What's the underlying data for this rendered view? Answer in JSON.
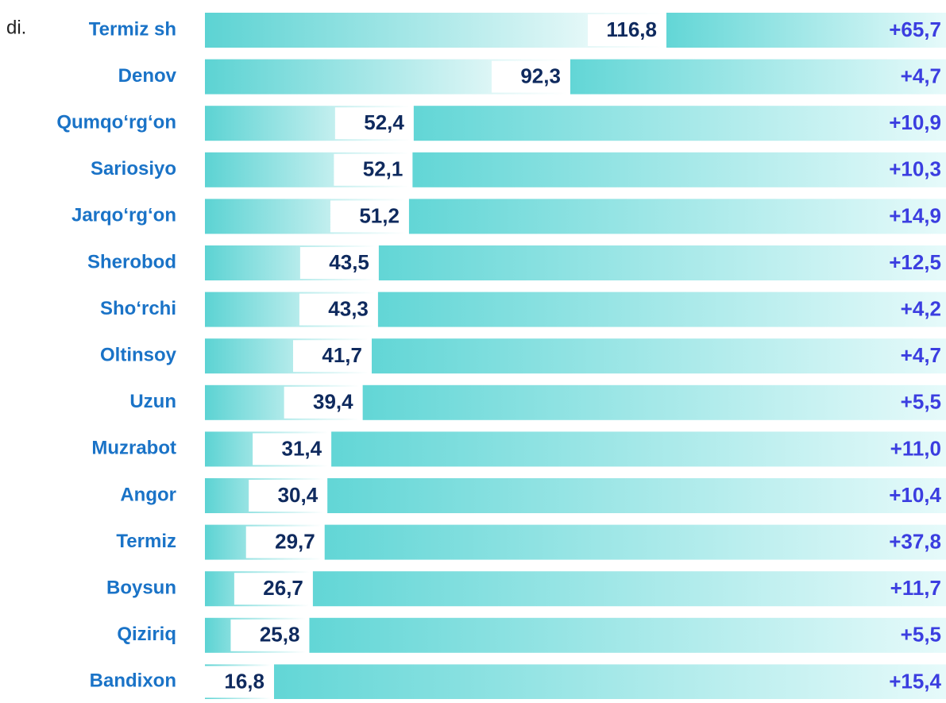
{
  "chart_data": {
    "type": "bar",
    "note": "di.",
    "categories": [
      "Termiz sh",
      "Denov",
      "Qumqo‘rg‘on",
      "Sariosiyo",
      "Jarqo‘rg‘on",
      "Sherobod",
      "Sho‘rchi",
      "Oltinsoy",
      "Uzun",
      "Muzrabot",
      "Angor",
      "Termiz",
      "Boysun",
      "Qiziriq",
      "Bandixon"
    ],
    "values": [
      116.8,
      92.3,
      52.4,
      52.1,
      51.2,
      43.5,
      43.3,
      41.7,
      39.4,
      31.4,
      30.4,
      29.7,
      26.7,
      25.8,
      16.8
    ],
    "value_labels": [
      "116,8",
      "92,3",
      "52,4",
      "52,1",
      "51,2",
      "43,5",
      "43,3",
      "41,7",
      "39,4",
      "31,4",
      "30,4",
      "29,7",
      "26,7",
      "25,8",
      "16,8"
    ],
    "color": "#5cd3d3",
    "changes": {
      "values": [
        65.7,
        4.7,
        10.9,
        10.3,
        14.9,
        12.5,
        4.2,
        4.7,
        5.5,
        11.0,
        10.4,
        37.8,
        11.7,
        5.5,
        15.4
      ],
      "value_labels": [
        "+65,7",
        "+4,7",
        "+10,9",
        "+10,3",
        "+14,9",
        "+12,5",
        "+4,2",
        "+4,7",
        "+5,5",
        "+11,0",
        "+10,4",
        "+37,8",
        "+11,7",
        "+5,5",
        "+15,4"
      ]
    }
  }
}
